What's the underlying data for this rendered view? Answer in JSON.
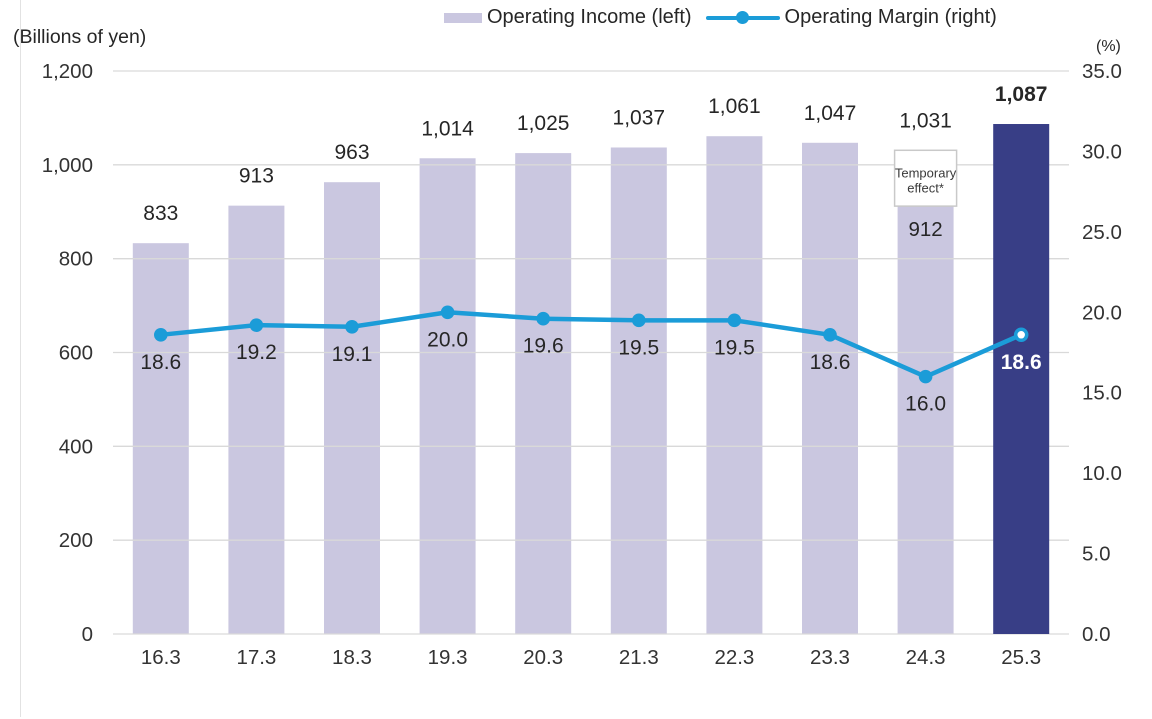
{
  "legend": {
    "items": [
      {
        "label": "Operating Income (left)",
        "swatch": "bar"
      },
      {
        "label": "Operating Margin (right)",
        "swatch": "line"
      }
    ]
  },
  "axes": {
    "left_unit": "(Billions of yen)",
    "right_unit": "(%)"
  },
  "colors": {
    "bar": "#cac7e0",
    "bar_highlight": "#383e86",
    "line": "#1b9cd8",
    "grid": "#d9d9d9",
    "text": "#262626",
    "annotation_fill": "#ffffff",
    "annotation_border": "#c9c9c9",
    "label_on_dark": "#ffffff"
  },
  "chart_data": {
    "type": "combo",
    "categories": [
      "16.3",
      "17.3",
      "18.3",
      "19.3",
      "20.3",
      "21.3",
      "22.3",
      "23.3",
      "24.3",
      "25.3"
    ],
    "series": [
      {
        "name": "Operating Income (left)",
        "type": "bar",
        "axis": "left",
        "values": [
          833,
          913,
          963,
          1014,
          1025,
          1037,
          1061,
          1047,
          1031,
          1087
        ],
        "value_labels": [
          "833",
          "913",
          "963",
          "1,014",
          "1,025",
          "1,037",
          "1,061",
          "1,047",
          "1,031",
          "1,087"
        ],
        "highlight_index": 9
      },
      {
        "name": "Operating Margin (right)",
        "type": "line",
        "axis": "right",
        "values": [
          18.6,
          19.2,
          19.1,
          20.0,
          19.6,
          19.5,
          19.5,
          18.6,
          16.0,
          18.6
        ],
        "value_labels": [
          "18.6",
          "19.2",
          "19.1",
          "20.0",
          "19.6",
          "19.5",
          "19.5",
          "18.6",
          "16.0",
          "18.6"
        ],
        "open_marker_index": 9,
        "white_label_index": 9
      }
    ],
    "annotation": {
      "category_index": 8,
      "box_from": 912,
      "box_to": 1031,
      "text_lines": [
        "Temporary",
        "effect*"
      ],
      "inner_value_label": "912"
    },
    "left_axis": {
      "label": "(Billions of yen)",
      "min": 0,
      "max": 1200,
      "step": 200,
      "tick_labels": [
        "0",
        "200",
        "400",
        "600",
        "800",
        "1,000",
        "1,200"
      ]
    },
    "right_axis": {
      "label": "(%)",
      "min": 0,
      "max": 35,
      "step": 5,
      "tick_labels": [
        "0.0",
        "5.0",
        "10.0",
        "15.0",
        "20.0",
        "25.0",
        "30.0",
        "35.0"
      ]
    },
    "legend_position": "top",
    "grid": "horizontal"
  }
}
